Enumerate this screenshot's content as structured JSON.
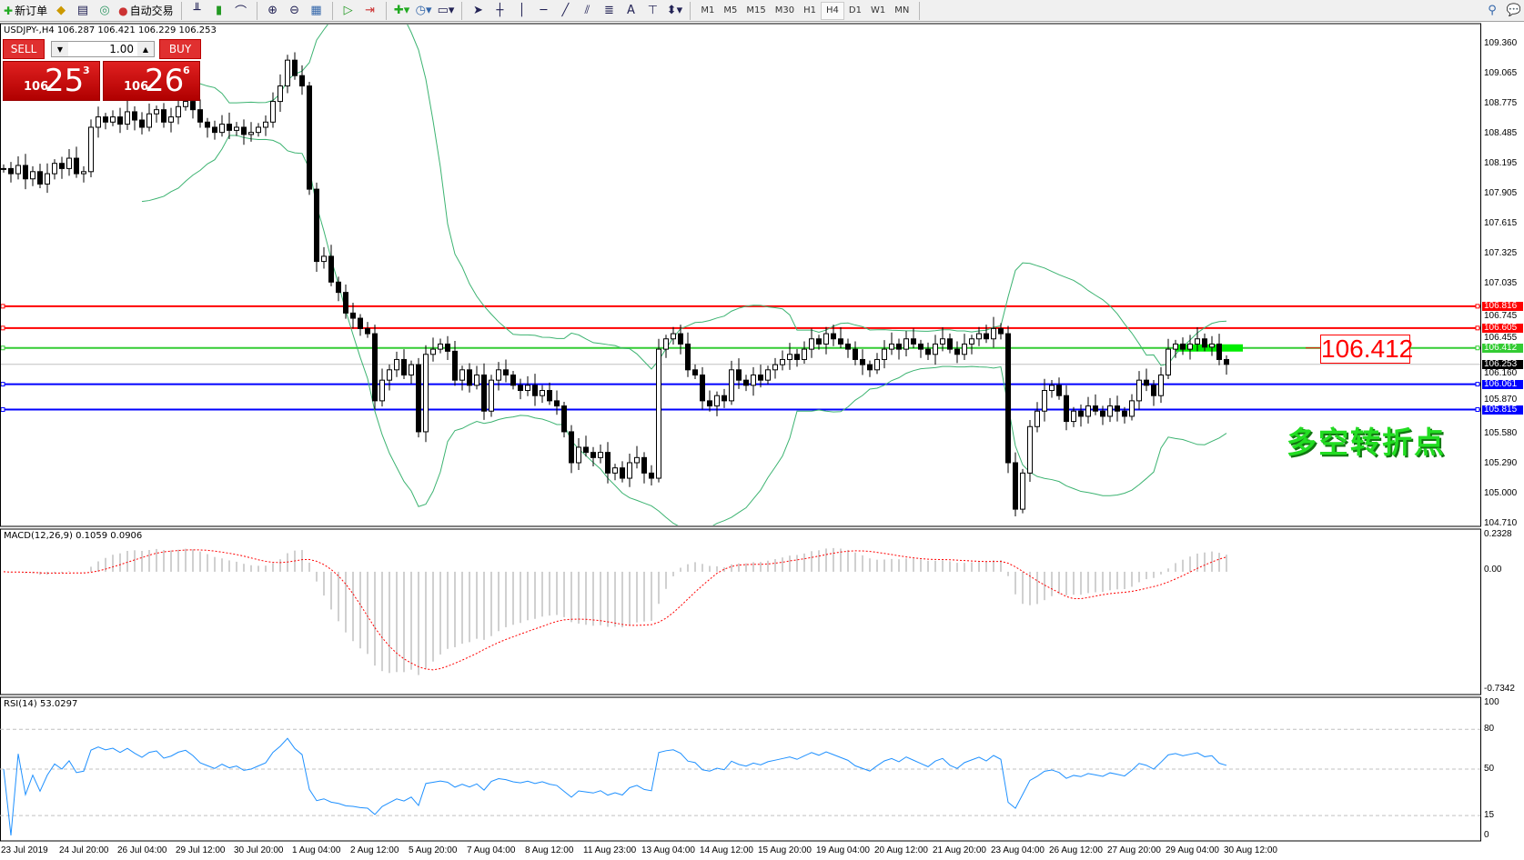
{
  "toolbar": {
    "new_order": "新订单",
    "auto_trading": "自动交易",
    "icons": [
      "new-order-icon",
      "expert-icon",
      "navigator-icon",
      "signal-icon",
      "auto-trading-icon",
      "bar-chart-icon",
      "candlestick-icon",
      "line-chart-icon",
      "zoom-in-icon",
      "zoom-out-icon",
      "tile-windows-icon",
      "chart-shift-icon",
      "autoscroll-icon",
      "indicators-icon",
      "periods-icon",
      "templates-icon",
      "cursor-icon",
      "crosshair-icon",
      "vertical-line-icon",
      "horizontal-line-icon",
      "trendline-icon",
      "fibonacci-icon",
      "fibo-fan-icon",
      "text-icon",
      "text-label-icon",
      "arrows-icon",
      "search-icon",
      "chat-icon"
    ],
    "timeframes": [
      "M1",
      "M5",
      "M15",
      "M30",
      "H1",
      "H4",
      "D1",
      "W1",
      "MN"
    ],
    "active_timeframe": "H4",
    "text_tool": "A"
  },
  "chart": {
    "symbol_line": "USDJPY-,H4  106.287 106.421 106.229 106.253",
    "trade_panel": {
      "sell": "SELL",
      "buy": "BUY",
      "lot": "1.00",
      "sell_small": "106",
      "sell_big": "25",
      "sell_sup": "3",
      "buy_small": "106",
      "buy_big": "26",
      "buy_sup": "6"
    },
    "price_ticks": [
      "109.360",
      "109.065",
      "108.775",
      "108.485",
      "108.195",
      "107.905",
      "107.615",
      "107.325",
      "107.035",
      "106.745",
      "106.455",
      "106.160",
      "105.870",
      "105.580",
      "105.290",
      "105.000",
      "104.710"
    ],
    "price_range": [
      104.71,
      109.36
    ],
    "levels": [
      {
        "price": 106.816,
        "label": "106.816",
        "color": "#ff0000"
      },
      {
        "price": 106.605,
        "label": "106.605",
        "color": "#ff0000"
      },
      {
        "price": 106.412,
        "label": "106.412",
        "color": "#33cc33"
      },
      {
        "price": 106.061,
        "label": "106.061",
        "color": "#0000ff"
      },
      {
        "price": 105.815,
        "label": "105.815",
        "color": "#0000ff"
      }
    ],
    "current_price": {
      "price": 106.253,
      "label": "106.253",
      "color": "#000000"
    },
    "level_callout": "106.412",
    "annotation": "多空转折点",
    "closes": [
      108.15,
      108.1,
      108.18,
      108.05,
      108.12,
      108.0,
      108.1,
      108.2,
      108.15,
      108.25,
      108.1,
      108.12,
      108.55,
      108.65,
      108.6,
      108.65,
      108.58,
      108.7,
      108.62,
      108.55,
      108.68,
      108.72,
      108.6,
      108.65,
      108.75,
      108.8,
      108.72,
      108.6,
      108.55,
      108.5,
      108.58,
      108.52,
      108.55,
      108.48,
      108.5,
      108.55,
      108.6,
      108.8,
      108.95,
      109.2,
      109.05,
      108.95,
      107.95,
      107.25,
      107.3,
      107.05,
      106.95,
      106.75,
      106.7,
      106.6,
      106.55,
      105.9,
      106.1,
      106.2,
      106.3,
      106.15,
      106.25,
      105.6,
      106.35,
      106.4,
      106.45,
      106.38,
      106.1,
      106.2,
      106.05,
      106.15,
      105.8,
      106.1,
      106.2,
      106.15,
      106.05,
      106.0,
      106.05,
      105.95,
      106.0,
      105.9,
      105.85,
      105.6,
      105.3,
      105.45,
      105.4,
      105.35,
      105.4,
      105.2,
      105.25,
      105.15,
      105.3,
      105.35,
      105.2,
      105.15,
      106.4,
      106.5,
      106.55,
      106.45,
      106.2,
      106.15,
      105.9,
      105.85,
      105.95,
      105.9,
      106.2,
      106.1,
      106.05,
      106.15,
      106.1,
      106.2,
      106.25,
      106.3,
      106.35,
      106.3,
      106.4,
      106.5,
      106.45,
      106.55,
      106.5,
      106.45,
      106.4,
      106.3,
      106.25,
      106.2,
      106.3,
      106.4,
      106.45,
      106.4,
      106.5,
      106.45,
      106.4,
      106.35,
      106.45,
      106.5,
      106.4,
      106.35,
      106.45,
      106.5,
      106.55,
      106.5,
      106.6,
      106.55,
      105.3,
      104.85,
      105.2,
      105.65,
      105.8,
      106.0,
      106.05,
      105.95,
      105.7,
      105.8,
      105.75,
      105.85,
      105.8,
      105.75,
      105.85,
      105.8,
      105.75,
      105.9,
      106.1,
      106.05,
      105.95,
      106.15,
      106.4,
      106.45,
      106.4,
      106.45,
      106.5,
      106.42,
      106.45,
      106.3,
      106.253
    ],
    "indicator": "Bollinger Bands (20, 2)"
  },
  "macd": {
    "title": "MACD(12,26,9) 0.1059 0.0906",
    "ticks": [
      "0.2328",
      "0.00",
      "-0.7342"
    ],
    "range": [
      -0.7342,
      0.2328
    ]
  },
  "rsi": {
    "title": "RSI(14) 53.0297",
    "ticks": [
      "100",
      "80",
      "50",
      "15",
      "0"
    ],
    "levels": [
      80,
      50,
      15
    ]
  },
  "time_axis": [
    "23 Jul 2019",
    "24 Jul 20:00",
    "26 Jul 04:00",
    "29 Jul 12:00",
    "30 Jul 20:00",
    "1 Aug 04:00",
    "2 Aug 12:00",
    "5 Aug 20:00",
    "7 Aug 04:00",
    "8 Aug 12:00",
    "11 Aug 23:00",
    "13 Aug 04:00",
    "14 Aug 12:00",
    "15 Aug 20:00",
    "19 Aug 04:00",
    "20 Aug 12:00",
    "21 Aug 20:00",
    "23 Aug 04:00",
    "26 Aug 12:00",
    "27 Aug 20:00",
    "29 Aug 04:00",
    "30 Aug 12:00"
  ]
}
